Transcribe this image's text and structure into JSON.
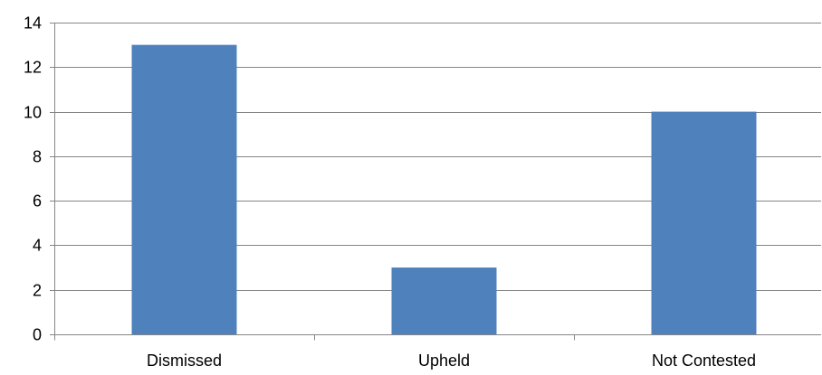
{
  "chart_data": {
    "type": "bar",
    "title": "",
    "xlabel": "",
    "ylabel": "",
    "categories": [
      "Dismissed",
      "Upheld",
      "Not Contested"
    ],
    "values": [
      13,
      3,
      10
    ],
    "ylim": [
      0,
      14
    ],
    "yticks": [
      0,
      2,
      4,
      6,
      8,
      10,
      12,
      14
    ],
    "grid": "horizontal",
    "legend": "none",
    "bar_color": "#4F81BD",
    "grid_color": "#868686",
    "axis_color": "#868686"
  }
}
